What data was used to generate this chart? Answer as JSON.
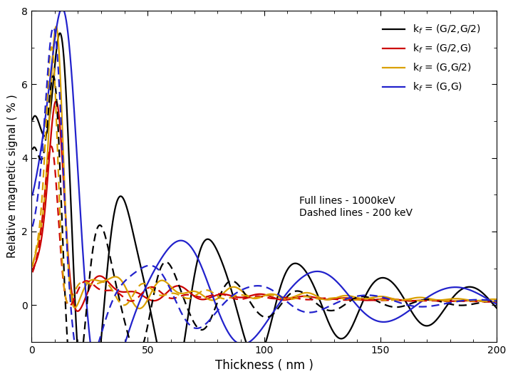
{
  "xlabel": "Thickness ( nm )",
  "ylabel": "Relative magnetic signal ( % )",
  "xlim": [
    0,
    200
  ],
  "ylim": [
    -1,
    8
  ],
  "yticks": [
    0,
    2,
    4,
    6,
    8
  ],
  "xticks": [
    0,
    50,
    100,
    150,
    200
  ],
  "colors": {
    "black": "#000000",
    "red": "#cc0000",
    "orange": "#daa000",
    "blue": "#2222cc"
  },
  "annotation_line1": "Full lines - 1000keV",
  "annotation_line2": "Dashed lines - 200 keV",
  "background_color": "#ffffff"
}
